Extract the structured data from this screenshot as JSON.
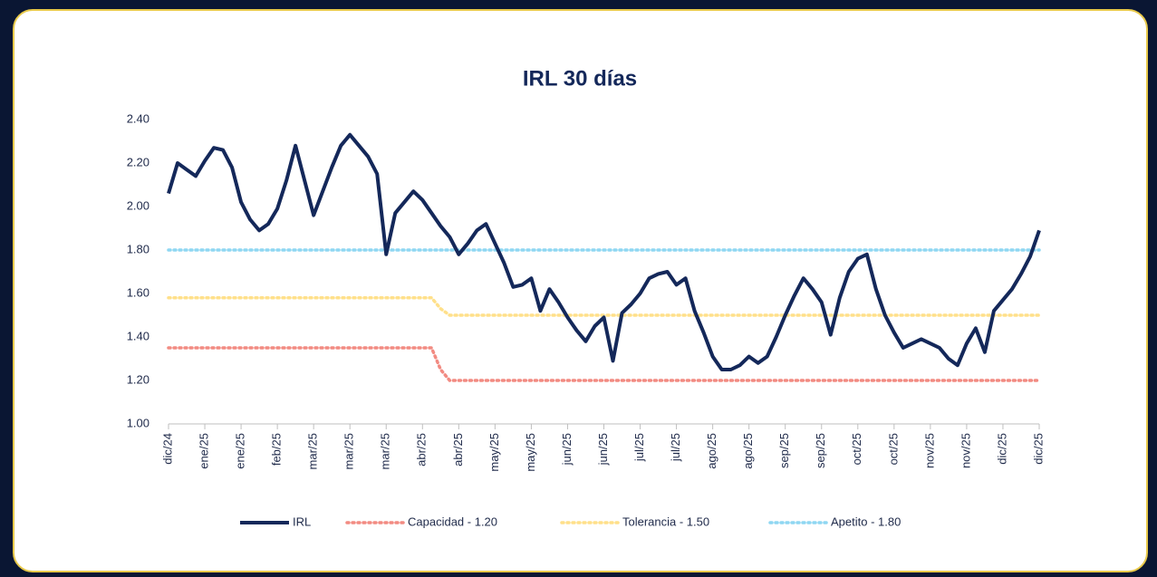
{
  "chart_data": {
    "type": "line",
    "title": "IRL 30 días",
    "categories": [
      "dic/24",
      null,
      null,
      null,
      "ene/25",
      null,
      null,
      null,
      "ene/25",
      null,
      null,
      null,
      "feb/25",
      null,
      null,
      null,
      "mar/25",
      null,
      null,
      null,
      "mar/25",
      null,
      null,
      null,
      "mar/25",
      null,
      null,
      null,
      "abr/25",
      null,
      null,
      null,
      "abr/25",
      null,
      null,
      null,
      "may/25",
      null,
      null,
      null,
      "may/25",
      null,
      null,
      null,
      "jun/25",
      null,
      null,
      null,
      "jun/25",
      null,
      null,
      null,
      "jul/25",
      null,
      null,
      null,
      "jul/25",
      null,
      null,
      null,
      "ago/25",
      null,
      null,
      null,
      "ago/25",
      null,
      null,
      null,
      "sep/25",
      null,
      null,
      null,
      "sep/25",
      null,
      null,
      null,
      "oct/25",
      null,
      null,
      null,
      "oct/25",
      null,
      null,
      null,
      "nov/25",
      null,
      null,
      null,
      "nov/25",
      null,
      null,
      null,
      "dic/25",
      null,
      null,
      null,
      "dic/25"
    ],
    "series": [
      {
        "name": "IRL",
        "color": "#14285a",
        "style": "solid",
        "values": [
          2.06,
          2.2,
          2.17,
          2.14,
          2.21,
          2.27,
          2.26,
          2.18,
          2.02,
          1.94,
          1.89,
          1.92,
          1.99,
          2.12,
          2.28,
          2.12,
          1.96,
          2.07,
          2.18,
          2.28,
          2.33,
          2.28,
          2.23,
          2.15,
          1.78,
          1.97,
          2.02,
          2.07,
          2.03,
          1.97,
          1.91,
          1.86,
          1.78,
          1.83,
          1.89,
          1.92,
          1.83,
          1.74,
          1.63,
          1.64,
          1.67,
          1.52,
          1.62,
          1.56,
          1.49,
          1.43,
          1.38,
          1.45,
          1.49,
          1.29,
          1.51,
          1.55,
          1.6,
          1.67,
          1.69,
          1.7,
          1.64,
          1.67,
          1.52,
          1.42,
          1.31,
          1.25,
          1.25,
          1.27,
          1.31,
          1.28,
          1.31,
          1.4,
          1.5,
          1.59,
          1.67,
          1.62,
          1.56,
          1.41,
          1.58,
          1.7,
          1.76,
          1.78,
          1.62,
          1.5,
          1.42,
          1.35,
          1.37,
          1.39,
          1.37,
          1.35,
          1.3,
          1.27,
          1.37,
          1.44,
          1.33,
          1.52,
          1.57,
          1.62,
          1.69,
          1.77,
          1.89
        ]
      },
      {
        "name": "Capacidad - 1.20",
        "color": "#f28b82",
        "style": "dotted",
        "values": [
          1.35,
          1.35,
          1.35,
          1.35,
          1.35,
          1.35,
          1.35,
          1.35,
          1.35,
          1.35,
          1.35,
          1.35,
          1.35,
          1.35,
          1.35,
          1.35,
          1.35,
          1.35,
          1.35,
          1.35,
          1.35,
          1.35,
          1.35,
          1.35,
          1.35,
          1.35,
          1.35,
          1.35,
          1.35,
          1.35,
          1.25,
          1.2,
          1.2,
          1.2,
          1.2,
          1.2,
          1.2,
          1.2,
          1.2,
          1.2,
          1.2,
          1.2,
          1.2,
          1.2,
          1.2,
          1.2,
          1.2,
          1.2,
          1.2,
          1.2,
          1.2,
          1.2,
          1.2,
          1.2,
          1.2,
          1.2,
          1.2,
          1.2,
          1.2,
          1.2,
          1.2,
          1.2,
          1.2,
          1.2,
          1.2,
          1.2,
          1.2,
          1.2,
          1.2,
          1.2,
          1.2,
          1.2,
          1.2,
          1.2,
          1.2,
          1.2,
          1.2,
          1.2,
          1.2,
          1.2,
          1.2,
          1.2,
          1.2,
          1.2,
          1.2,
          1.2,
          1.2,
          1.2,
          1.2,
          1.2,
          1.2,
          1.2,
          1.2,
          1.2,
          1.2,
          1.2,
          1.2
        ]
      },
      {
        "name": "Tolerancia - 1.50",
        "color": "#ffe08a",
        "style": "dotted",
        "values": [
          1.58,
          1.58,
          1.58,
          1.58,
          1.58,
          1.58,
          1.58,
          1.58,
          1.58,
          1.58,
          1.58,
          1.58,
          1.58,
          1.58,
          1.58,
          1.58,
          1.58,
          1.58,
          1.58,
          1.58,
          1.58,
          1.58,
          1.58,
          1.58,
          1.58,
          1.58,
          1.58,
          1.58,
          1.58,
          1.58,
          1.53,
          1.5,
          1.5,
          1.5,
          1.5,
          1.5,
          1.5,
          1.5,
          1.5,
          1.5,
          1.5,
          1.5,
          1.5,
          1.5,
          1.5,
          1.5,
          1.5,
          1.5,
          1.5,
          1.5,
          1.5,
          1.5,
          1.5,
          1.5,
          1.5,
          1.5,
          1.5,
          1.5,
          1.5,
          1.5,
          1.5,
          1.5,
          1.5,
          1.5,
          1.5,
          1.5,
          1.5,
          1.5,
          1.5,
          1.5,
          1.5,
          1.5,
          1.5,
          1.5,
          1.5,
          1.5,
          1.5,
          1.5,
          1.5,
          1.5,
          1.5,
          1.5,
          1.5,
          1.5,
          1.5,
          1.5,
          1.5,
          1.5,
          1.5,
          1.5,
          1.5,
          1.5,
          1.5,
          1.5,
          1.5,
          1.5,
          1.5
        ]
      },
      {
        "name": "Apetito - 1.80",
        "color": "#8fd7f2",
        "style": "dotted",
        "values": [
          1.8,
          1.8,
          1.8,
          1.8,
          1.8,
          1.8,
          1.8,
          1.8,
          1.8,
          1.8,
          1.8,
          1.8,
          1.8,
          1.8,
          1.8,
          1.8,
          1.8,
          1.8,
          1.8,
          1.8,
          1.8,
          1.8,
          1.8,
          1.8,
          1.8,
          1.8,
          1.8,
          1.8,
          1.8,
          1.8,
          1.8,
          1.8,
          1.8,
          1.8,
          1.8,
          1.8,
          1.8,
          1.8,
          1.8,
          1.8,
          1.8,
          1.8,
          1.8,
          1.8,
          1.8,
          1.8,
          1.8,
          1.8,
          1.8,
          1.8,
          1.8,
          1.8,
          1.8,
          1.8,
          1.8,
          1.8,
          1.8,
          1.8,
          1.8,
          1.8,
          1.8,
          1.8,
          1.8,
          1.8,
          1.8,
          1.8,
          1.8,
          1.8,
          1.8,
          1.8,
          1.8,
          1.8,
          1.8,
          1.8,
          1.8,
          1.8,
          1.8,
          1.8,
          1.8,
          1.8,
          1.8,
          1.8,
          1.8,
          1.8,
          1.8,
          1.8,
          1.8,
          1.8,
          1.8,
          1.8,
          1.8,
          1.8,
          1.8,
          1.8,
          1.8,
          1.8,
          1.8
        ]
      }
    ],
    "ylim": [
      1,
      2.4
    ],
    "yticks": [
      {
        "value": 1,
        "label": "1.00"
      },
      {
        "value": 1.2,
        "label": "1.20"
      },
      {
        "value": 1.4,
        "label": "1.40"
      },
      {
        "value": 1.6,
        "label": "1.60"
      },
      {
        "value": 1.8,
        "label": "1.80"
      },
      {
        "value": 2,
        "label": "2.00"
      },
      {
        "value": 2.2,
        "label": "2.20"
      },
      {
        "value": 2.4,
        "label": "2.40"
      }
    ],
    "grid": false,
    "legend": "bottom"
  }
}
